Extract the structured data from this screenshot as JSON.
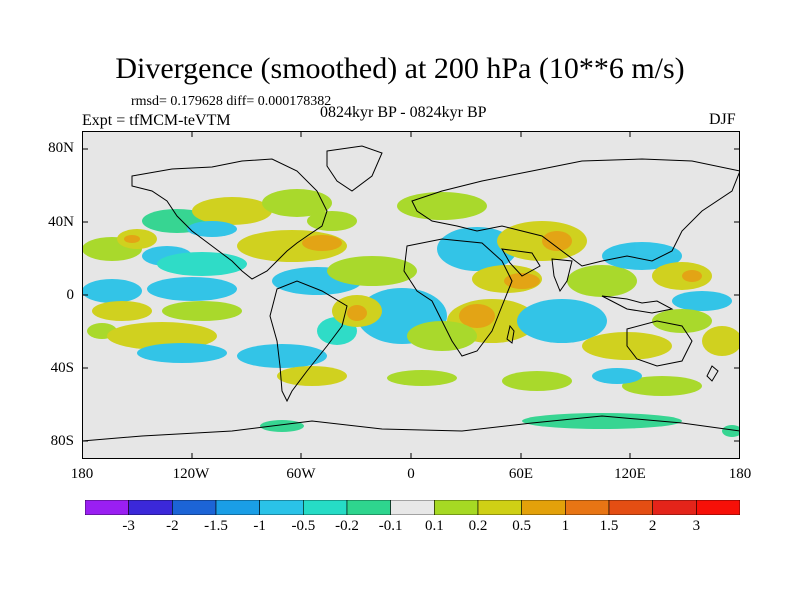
{
  "header": {
    "title": "Divergence (smoothed) at 200 hPa (10**6 m/s)",
    "stats": "rmsd= 0.179628 diff= 0.000178382",
    "experiment": "Expt = tfMCM-teVTM",
    "period": "0824kyr BP - 0824kyr BP",
    "season": "DJF"
  },
  "axes": {
    "lat_labels": [
      "80N",
      "40N",
      "0",
      "40S",
      "80S"
    ],
    "lon_labels": [
      "180",
      "120W",
      "60W",
      "0",
      "60E",
      "120E",
      "180"
    ]
  },
  "colorbar": {
    "labels": [
      "-3",
      "-2",
      "-1.5",
      "-1",
      "-0.5",
      "-0.2",
      "-0.1",
      "0.1",
      "0.2",
      "0.5",
      "1",
      "1.5",
      "2",
      "3"
    ],
    "colors": [
      "#9a1ff2",
      "#3b28d9",
      "#1c64d6",
      "#1a9ee6",
      "#2ac3e8",
      "#26dcc6",
      "#2ed58e",
      "#e8e8e8",
      "#a6d923",
      "#cfd015",
      "#e3a10a",
      "#e87514",
      "#e44e13",
      "#e4241a",
      "#f71008"
    ]
  },
  "map_colors": {
    "background": "#e6e6e6",
    "coast": "#000000"
  }
}
